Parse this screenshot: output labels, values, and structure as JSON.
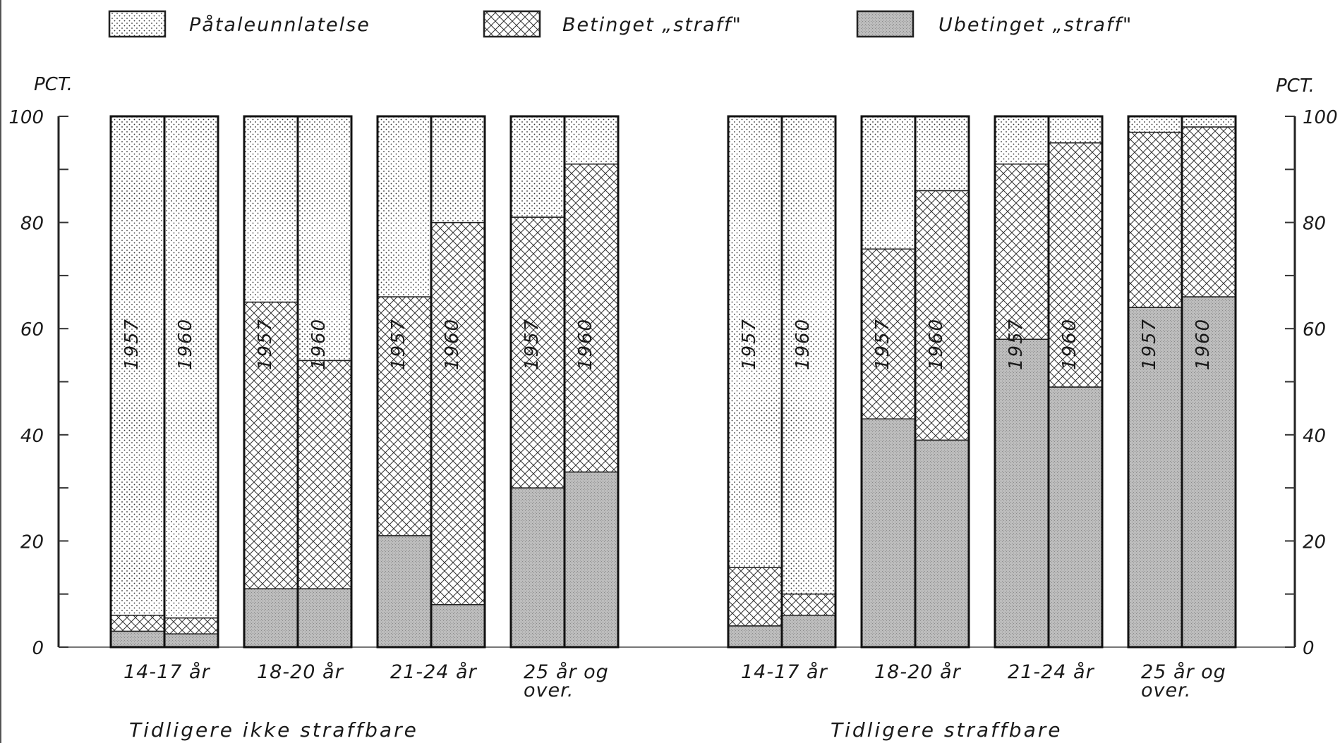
{
  "chart_data": {
    "type": "bar",
    "stacked": true,
    "unit_label_left": "PCT.",
    "unit_label_right": "PCT.",
    "ylim": [
      0,
      100
    ],
    "y_ticks": [
      {
        "value": 0,
        "label": "0"
      },
      {
        "value": 20,
        "label": "20"
      },
      {
        "value": 40,
        "label": "40"
      },
      {
        "value": 60,
        "label": "60"
      },
      {
        "value": 80,
        "label": "80"
      },
      {
        "value": 100,
        "label": "100"
      }
    ],
    "legend": [
      {
        "key": "pataleunnlatelse",
        "label": "Påtaleunnlatelse",
        "pattern": "dots"
      },
      {
        "key": "betinget",
        "label": "Betinget „straff\"",
        "pattern": "crosshatch"
      },
      {
        "key": "ubetinget",
        "label": "Ubetinget „straff\"",
        "pattern": "grey"
      }
    ],
    "panels": [
      {
        "title": "Tidligere ikke straffbare",
        "groups": [
          {
            "label": [
              "14-17 år"
            ],
            "bars": [
              {
                "year": "1957",
                "ubetinget": 3,
                "betinget": 3,
                "pataleunnlatelse": 94
              },
              {
                "year": "1960",
                "ubetinget": 2.5,
                "betinget": 3,
                "pataleunnlatelse": 94.5
              }
            ]
          },
          {
            "label": [
              "18-20 år"
            ],
            "bars": [
              {
                "year": "1957",
                "ubetinget": 11,
                "betinget": 54,
                "pataleunnlatelse": 35
              },
              {
                "year": "1960",
                "ubetinget": 11,
                "betinget": 43,
                "pataleunnlatelse": 46
              }
            ]
          },
          {
            "label": [
              "21-24 år"
            ],
            "bars": [
              {
                "year": "1957",
                "ubetinget": 21,
                "betinget": 45,
                "pataleunnlatelse": 34
              },
              {
                "year": "1960",
                "ubetinget": 8,
                "betinget": 72,
                "pataleunnlatelse": 20
              }
            ]
          },
          {
            "label": [
              "25 år og",
              "over."
            ],
            "bars": [
              {
                "year": "1957",
                "ubetinget": 30,
                "betinget": 51,
                "pataleunnlatelse": 19
              },
              {
                "year": "1960",
                "ubetinget": 33,
                "betinget": 58,
                "pataleunnlatelse": 9
              }
            ]
          }
        ]
      },
      {
        "title": "Tidligere straffbare",
        "groups": [
          {
            "label": [
              "14-17 år"
            ],
            "bars": [
              {
                "year": "1957",
                "ubetinget": 4,
                "betinget": 11,
                "pataleunnlatelse": 85
              },
              {
                "year": "1960",
                "ubetinget": 6,
                "betinget": 4,
                "pataleunnlatelse": 90
              }
            ]
          },
          {
            "label": [
              "18-20 år"
            ],
            "bars": [
              {
                "year": "1957",
                "ubetinget": 43,
                "betinget": 32,
                "pataleunnlatelse": 25
              },
              {
                "year": "1960",
                "ubetinget": 39,
                "betinget": 47,
                "pataleunnlatelse": 14
              }
            ]
          },
          {
            "label": [
              "21-24 år"
            ],
            "bars": [
              {
                "year": "1957",
                "ubetinget": 58,
                "betinget": 33,
                "pataleunnlatelse": 9
              },
              {
                "year": "1960",
                "ubetinget": 49,
                "betinget": 46,
                "pataleunnlatelse": 5
              }
            ]
          },
          {
            "label": [
              "25 år og",
              "over."
            ],
            "bars": [
              {
                "year": "1957",
                "ubetinget": 64,
                "betinget": 33,
                "pataleunnlatelse": 3
              },
              {
                "year": "1960",
                "ubetinget": 66,
                "betinget": 32,
                "pataleunnlatelse": 2
              }
            ]
          }
        ]
      }
    ]
  }
}
